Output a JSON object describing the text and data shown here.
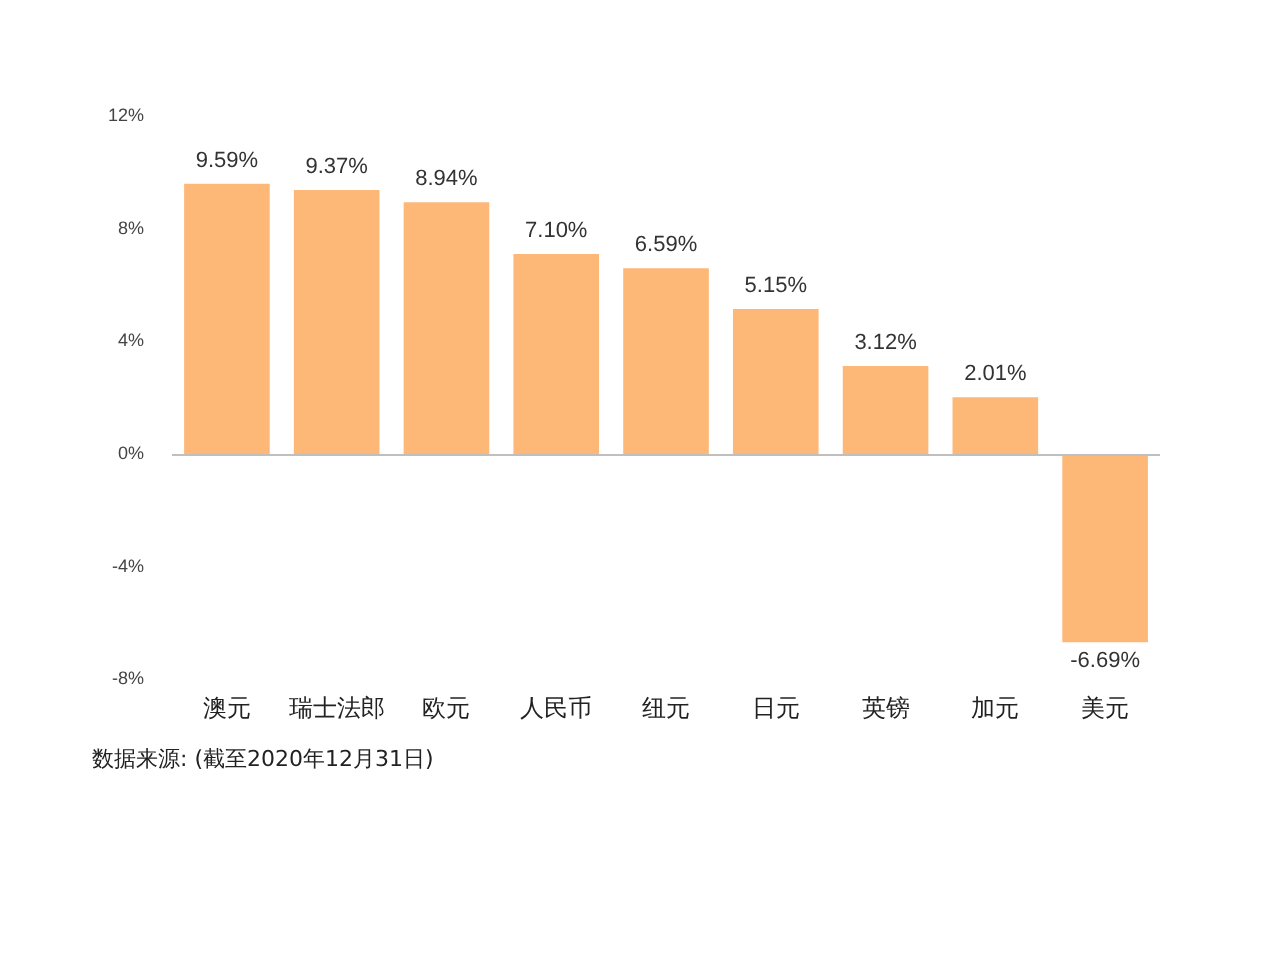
{
  "chart_data": {
    "type": "bar",
    "categories": [
      "澳元",
      "瑞士法郎",
      "欧元",
      "人民币",
      "纽元",
      "日元",
      "英镑",
      "加元",
      "美元"
    ],
    "values": [
      9.59,
      9.37,
      8.94,
      7.1,
      6.59,
      5.15,
      3.12,
      2.01,
      -6.69
    ],
    "value_labels": [
      "9.59%",
      "9.37%",
      "8.94%",
      "7.10%",
      "6.59%",
      "5.15%",
      "3.12%",
      "2.01%",
      "-6.69%"
    ],
    "color": "#fdb878",
    "ylim": [
      -8,
      12
    ],
    "yticks": [
      {
        "value": -8,
        "label": "-8%"
      },
      {
        "value": -4,
        "label": "-4%"
      },
      {
        "value": 0,
        "label": "0%"
      },
      {
        "value": 4,
        "label": "4%"
      },
      {
        "value": 8,
        "label": "8%"
      },
      {
        "value": 12,
        "label": "12%"
      }
    ],
    "grid": false,
    "ref_lines": [
      {
        "axis": "y",
        "value": 0,
        "color": "#bfbfbf"
      }
    ],
    "legend": false,
    "annotations": [
      "数据来源: (截至2020年12月31日)"
    ]
  }
}
